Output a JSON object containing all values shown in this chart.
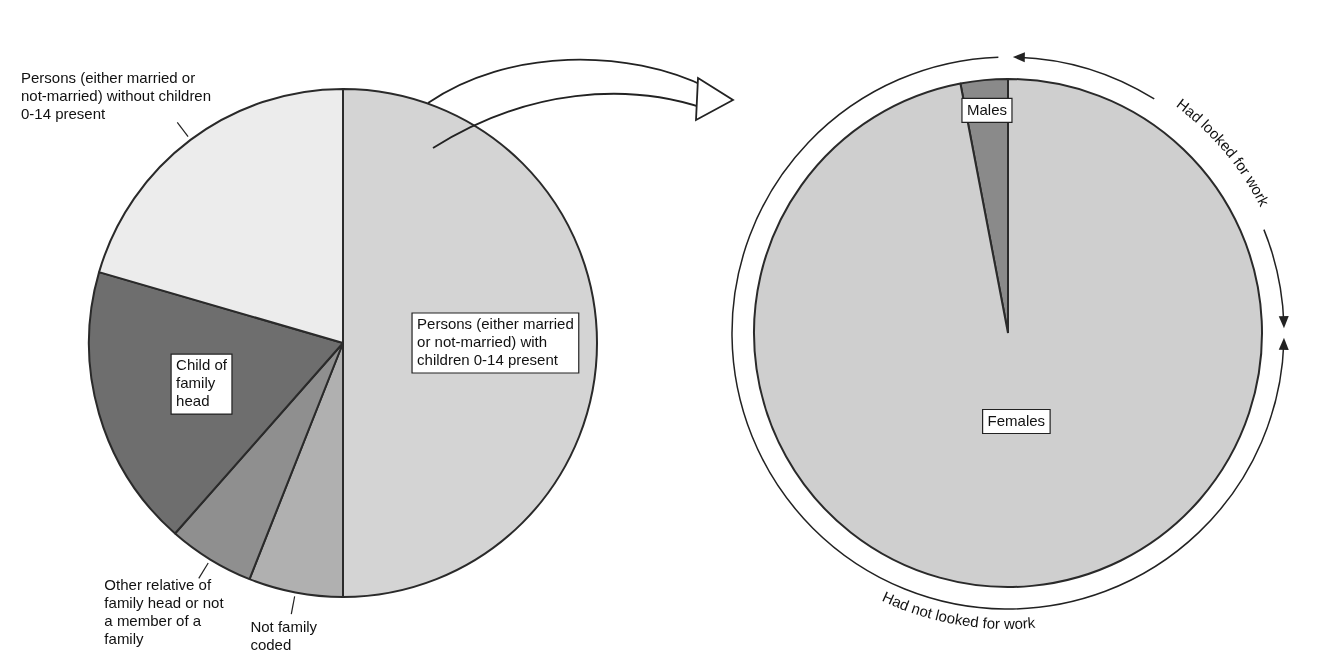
{
  "chart_data": [
    {
      "type": "pie",
      "categories": [
        "Persons (either married or not-married) with children 0-14 present",
        "Not family coded",
        "Other relative of family head or not a member of a family",
        "Child of family head",
        "Persons (either married or not-married) without children 0-14 present"
      ],
      "values": [
        50,
        6,
        5.5,
        18,
        20.5
      ],
      "colors": [
        "#d4d4d4",
        "#b0b0b0",
        "#8f8f8f",
        "#6e6e6e",
        "#ececec"
      ],
      "legend": false
    },
    {
      "type": "pie",
      "categories": [
        "Males",
        "Females"
      ],
      "values": [
        3,
        97
      ],
      "colors": [
        "#8a8a8a",
        "#cfcfcf"
      ],
      "legend": false,
      "annotations": [
        "Had looked for work",
        "Had not looked for work"
      ]
    }
  ]
}
